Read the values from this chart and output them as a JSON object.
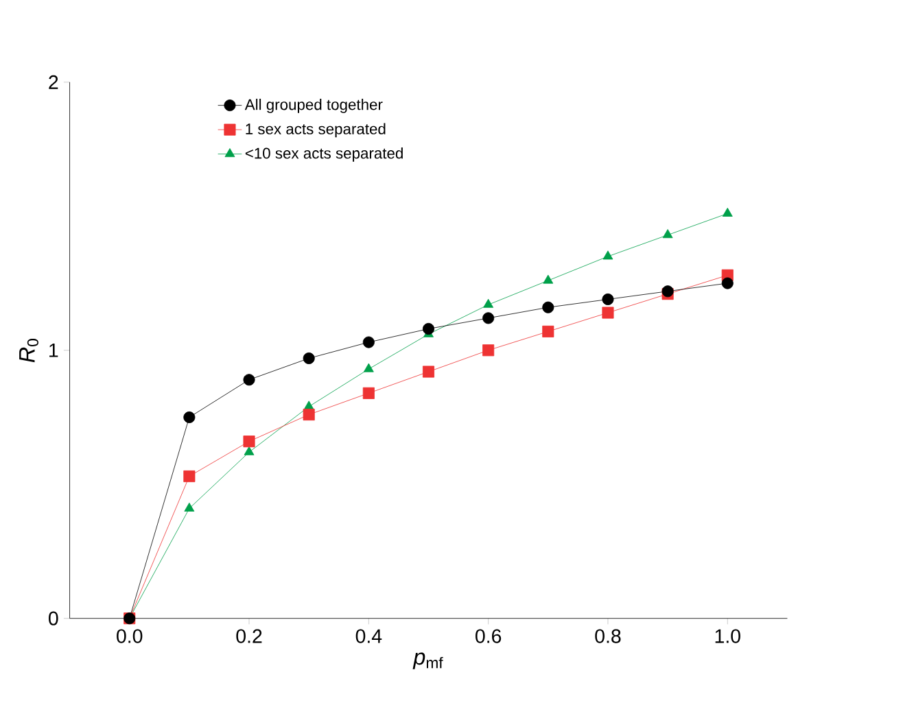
{
  "chart_data": {
    "type": "line",
    "xlabel": "*p*$_{mf}$",
    "ylabel": "*R*$_{0}$",
    "x": [
      0,
      0.1,
      0.2,
      0.3,
      0.4,
      0.5,
      0.6,
      0.7,
      0.8,
      0.9,
      1.0
    ],
    "series": [
      {
        "name": "All grouped together",
        "color": "#000000",
        "marker": "circle",
        "values": [
          0,
          0.75,
          0.89,
          0.97,
          1.03,
          1.08,
          1.12,
          1.16,
          1.19,
          1.22,
          1.25
        ]
      },
      {
        "name": "1 sex acts separated",
        "color": "#ee3333",
        "marker": "square",
        "values": [
          0,
          0.53,
          0.66,
          0.76,
          0.84,
          0.92,
          1.0,
          1.07,
          1.14,
          1.21,
          1.28
        ]
      },
      {
        "name": "<10 sex acts separated",
        "color": "#00a04a",
        "marker": "triangle",
        "values": [
          0,
          0.41,
          0.62,
          0.79,
          0.93,
          1.06,
          1.17,
          1.26,
          1.35,
          1.43,
          1.51
        ]
      }
    ],
    "xlim": [
      -0.1,
      1.1
    ],
    "ylim": [
      0,
      2
    ],
    "xticks": [
      {
        "value": 0,
        "label": "0.0"
      },
      {
        "value": 0.2,
        "label": "0.2"
      },
      {
        "value": 0.4,
        "label": "0.4"
      },
      {
        "value": 0.6,
        "label": "0.6"
      },
      {
        "value": 0.8,
        "label": "0.8"
      },
      {
        "value": 1.0,
        "label": "1.0"
      }
    ],
    "yticks": [
      0,
      1,
      2
    ],
    "legend": "top left",
    "grid": false,
    "line_style": "solid"
  }
}
